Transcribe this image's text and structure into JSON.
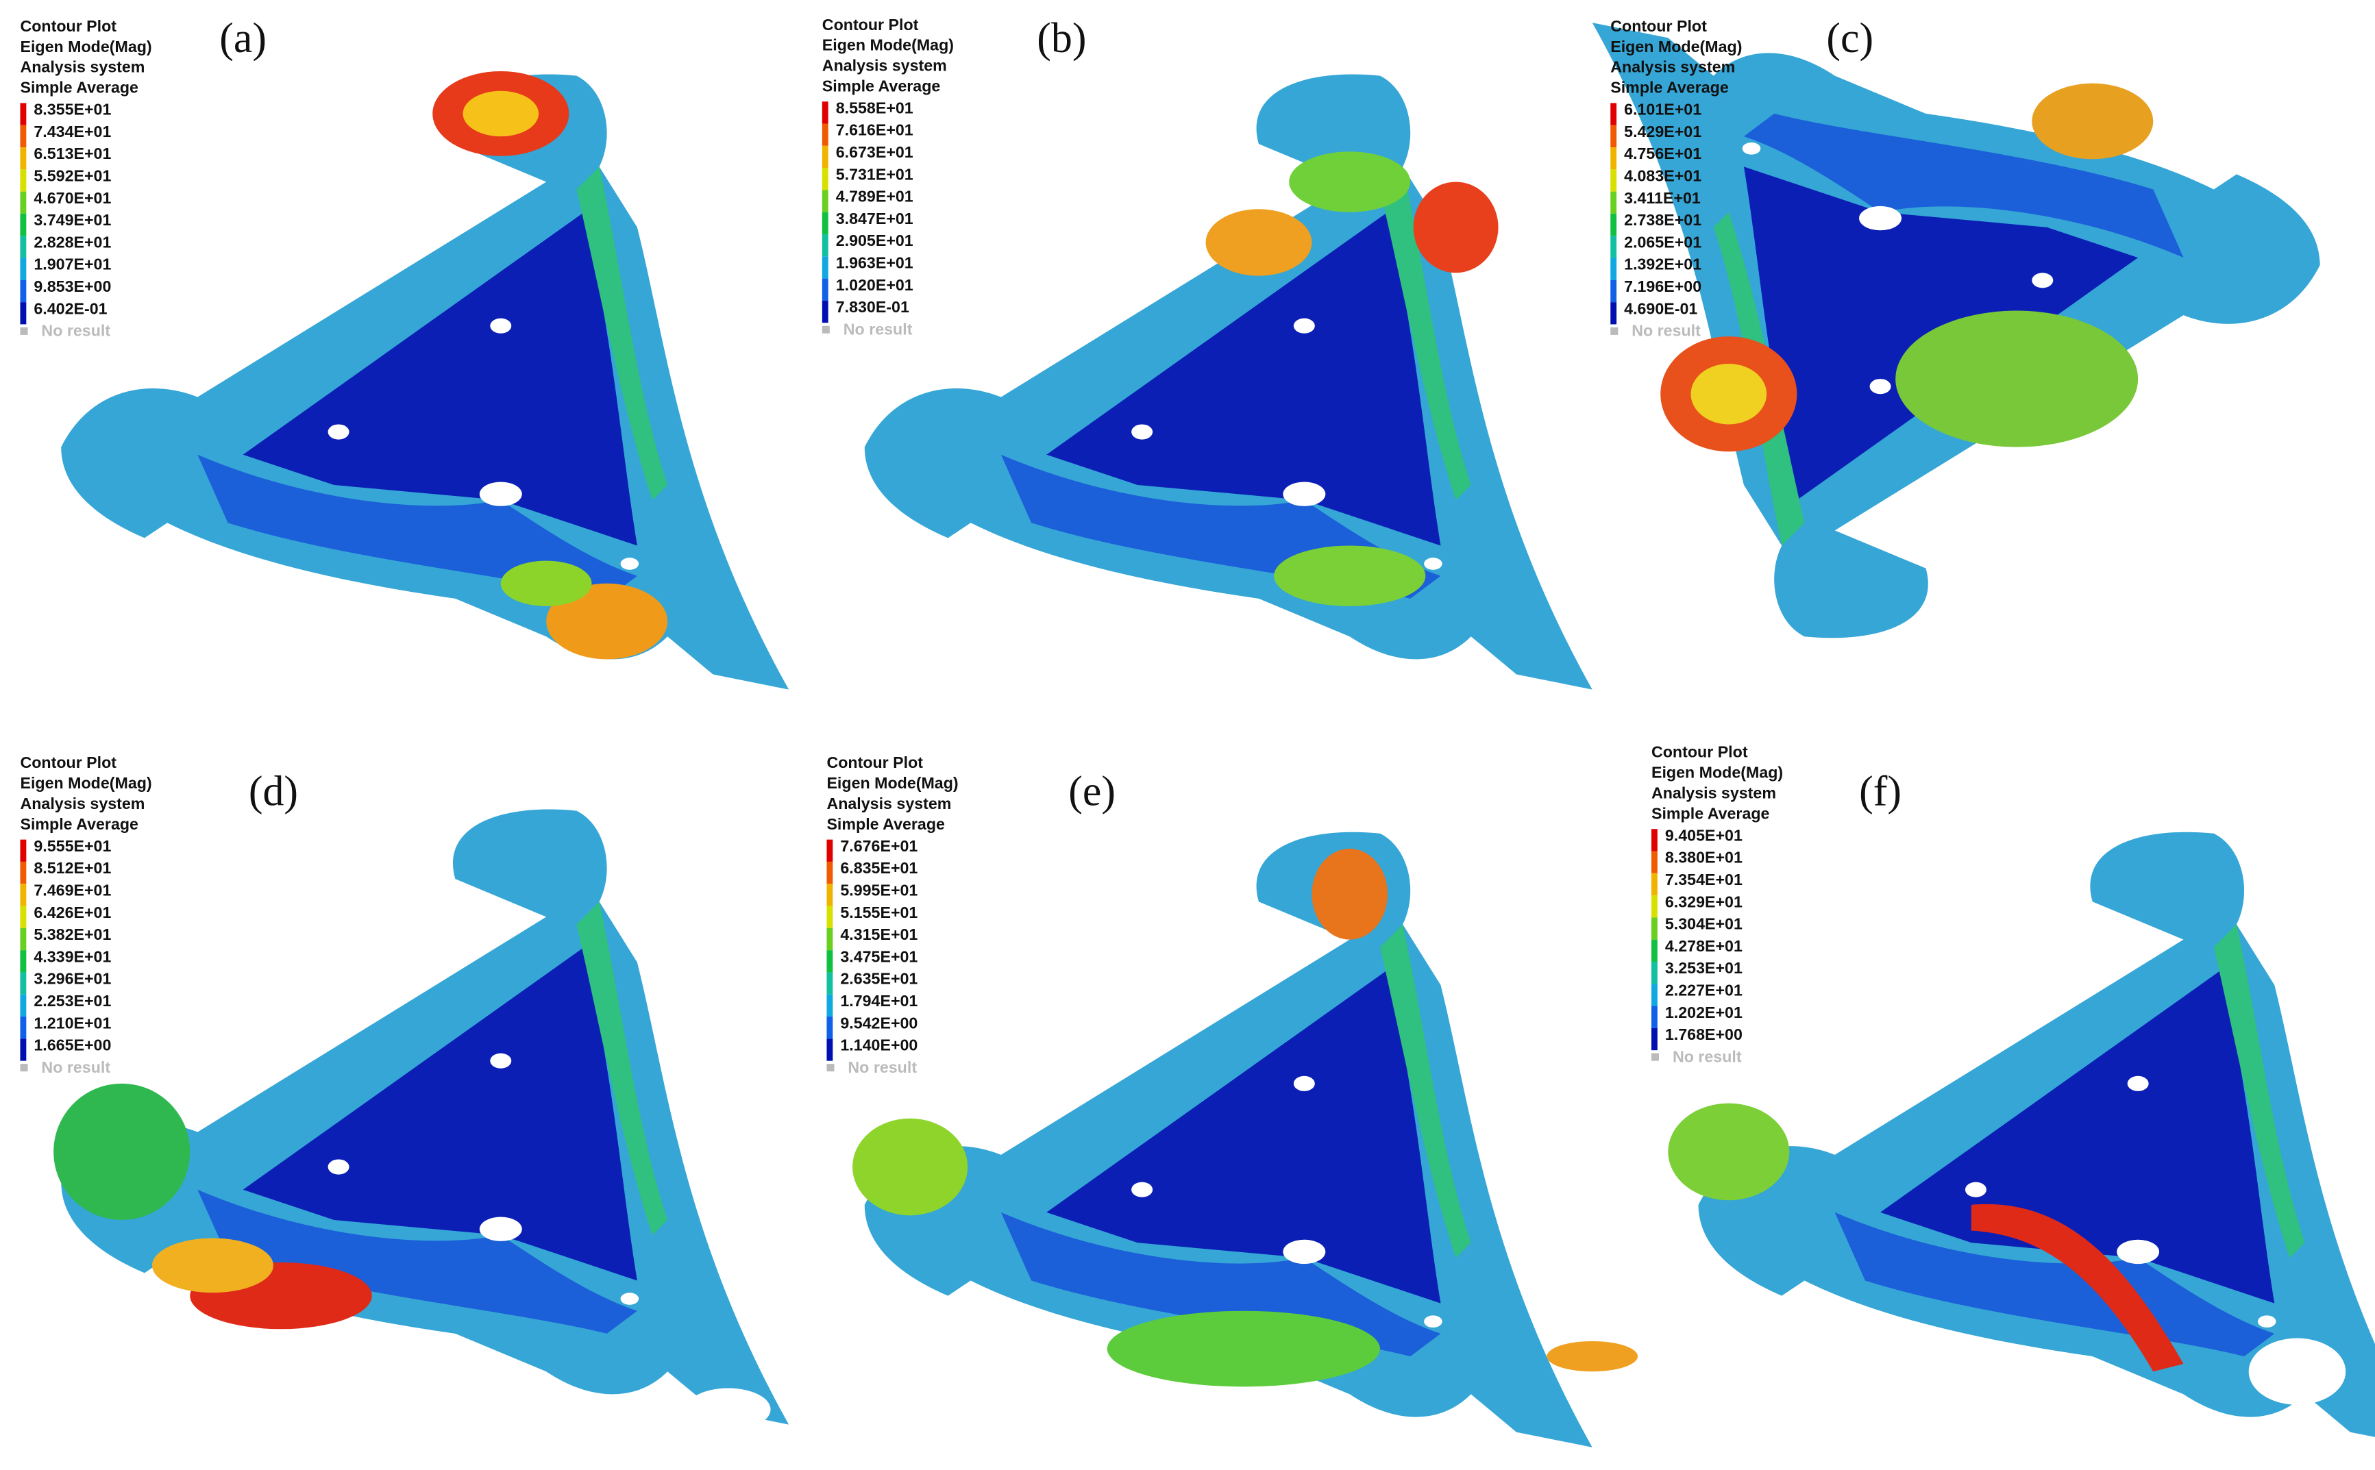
{
  "panels": [
    {
      "label": "(a)",
      "legend_title": [
        "Contour Plot",
        "Eigen Mode(Mag)",
        "Analysis system",
        "Simple Average"
      ],
      "values": [
        "8.355E+01",
        "7.434E+01",
        "6.513E+01",
        "5.592E+01",
        "4.670E+01",
        "3.749E+01",
        "2.828E+01",
        "1.907E+01",
        "9.853E+00",
        "6.402E-01"
      ],
      "no_result": "No result"
    },
    {
      "label": "(b)",
      "legend_title": [
        "Contour Plot",
        "Eigen Mode(Mag)",
        "Analysis system",
        "Simple Average"
      ],
      "values": [
        "8.558E+01",
        "7.616E+01",
        "6.673E+01",
        "5.731E+01",
        "4.789E+01",
        "3.847E+01",
        "2.905E+01",
        "1.963E+01",
        "1.020E+01",
        "7.830E-01"
      ],
      "no_result": "No result"
    },
    {
      "label": "(c)",
      "legend_title": [
        "Contour Plot",
        "Eigen Mode(Mag)",
        "Analysis system",
        "Simple Average"
      ],
      "values": [
        "6.101E+01",
        "5.429E+01",
        "4.756E+01",
        "4.083E+01",
        "3.411E+01",
        "2.738E+01",
        "2.065E+01",
        "1.392E+01",
        "7.196E+00",
        "4.690E-01"
      ],
      "no_result": "No result"
    },
    {
      "label": "(d)",
      "legend_title": [
        "Contour Plot",
        "Eigen Mode(Mag)",
        "Analysis system",
        "Simple Average"
      ],
      "values": [
        "9.555E+01",
        "8.512E+01",
        "7.469E+01",
        "6.426E+01",
        "5.382E+01",
        "4.339E+01",
        "3.296E+01",
        "2.253E+01",
        "1.210E+01",
        "1.665E+00"
      ],
      "no_result": "No result"
    },
    {
      "label": "(e)",
      "legend_title": [
        "Contour Plot",
        "Eigen Mode(Mag)",
        "Analysis system",
        "Simple Average"
      ],
      "values": [
        "7.676E+01",
        "6.835E+01",
        "5.995E+01",
        "5.155E+01",
        "4.315E+01",
        "3.475E+01",
        "2.635E+01",
        "1.794E+01",
        "9.542E+00",
        "1.140E+00"
      ],
      "no_result": "No result"
    },
    {
      "label": "(f)",
      "legend_title": [
        "Contour Plot",
        "Eigen Mode(Mag)",
        "Analysis system",
        "Simple Average"
      ],
      "values": [
        "9.405E+01",
        "8.380E+01",
        "7.354E+01",
        "6.329E+01",
        "5.304E+01",
        "4.278E+01",
        "3.253E+01",
        "2.227E+01",
        "1.202E+01",
        "1.768E+00"
      ],
      "no_result": "No result"
    }
  ]
}
